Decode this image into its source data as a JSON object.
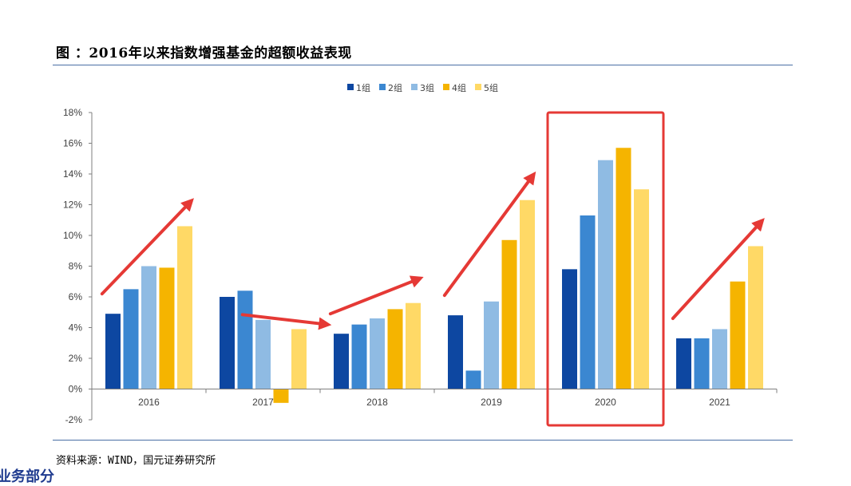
{
  "title": "图 ：2016年以来指数增强基金的超额收益表现",
  "source": "资料来源：WIND，国元证券研究所",
  "cut_text": "业务部分",
  "colors": {
    "group1": "#0d47a1",
    "group2": "#3b87d1",
    "group3": "#8fbbe3",
    "group4": "#f5b400",
    "group5": "#ffd966",
    "arrow": "#e53935",
    "highlight": "#e53935",
    "axis": "#7f7f7f"
  },
  "chart_data": {
    "type": "bar",
    "categories": [
      "2016",
      "2017",
      "2018",
      "2019",
      "2020",
      "2021"
    ],
    "series": [
      {
        "name": "1组",
        "values": [
          4.9,
          6.0,
          3.6,
          4.8,
          7.8,
          3.3
        ]
      },
      {
        "name": "2组",
        "values": [
          6.5,
          6.4,
          4.2,
          1.2,
          11.3,
          3.3
        ]
      },
      {
        "name": "3组",
        "values": [
          8.0,
          4.5,
          4.6,
          5.7,
          14.9,
          3.9
        ]
      },
      {
        "name": "4组",
        "values": [
          7.9,
          -0.9,
          5.2,
          9.7,
          15.7,
          7.0
        ]
      },
      {
        "name": "5组",
        "values": [
          10.6,
          3.9,
          5.6,
          12.3,
          13.0,
          9.3
        ]
      }
    ],
    "ylim": [
      -2,
      18
    ],
    "yticks": [
      "-2%",
      "0%",
      "2%",
      "4%",
      "6%",
      "8%",
      "10%",
      "12%",
      "14%",
      "16%",
      "18%"
    ],
    "legend_position": "top-center",
    "grid": false,
    "highlighted_category": "2020",
    "trend_arrows": [
      "up",
      "down",
      "up",
      "up",
      "none",
      "up"
    ]
  }
}
